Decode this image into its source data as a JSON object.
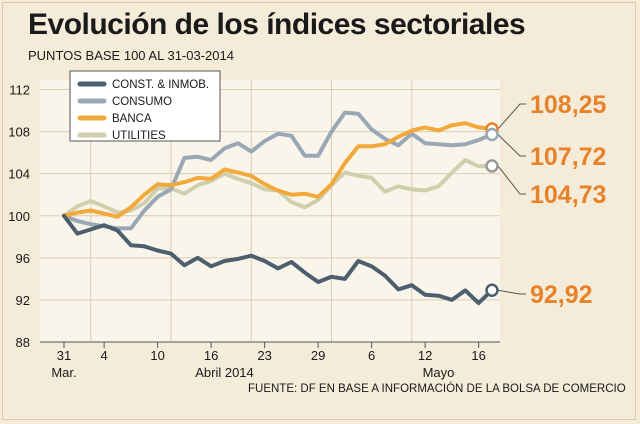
{
  "title": "Evolución de los índices sectoriales",
  "subtitle": "PUNTOS BASE 100 AL 31-03-2014",
  "source": "FUENTE: DF EN BASE A INFORMACIÓN DE LA BOLSA DE COMERCIO",
  "chart_data": {
    "type": "line",
    "ylim": [
      88,
      113
    ],
    "yticks": [
      88,
      92,
      96,
      100,
      104,
      108,
      112
    ],
    "xticks": [
      {
        "i": 0,
        "label": "31"
      },
      {
        "i": 3,
        "label": "4"
      },
      {
        "i": 7,
        "label": "10"
      },
      {
        "i": 11,
        "label": "16"
      },
      {
        "i": 15,
        "label": "23"
      },
      {
        "i": 19,
        "label": "29"
      },
      {
        "i": 23,
        "label": "6"
      },
      {
        "i": 27,
        "label": "12"
      },
      {
        "i": 31,
        "label": "16"
      }
    ],
    "month_labels": [
      {
        "i": 0,
        "label": "Mar."
      },
      {
        "i": 12,
        "label": "Abril 2014"
      },
      {
        "i": 28,
        "label": "Mayo"
      }
    ],
    "vlines": [
      2,
      8,
      14,
      20,
      26
    ],
    "series": [
      {
        "name": "CONST. & INMOB.",
        "color": "#4d5f6d",
        "values": [
          100.0,
          98.3,
          98.7,
          99.1,
          98.6,
          97.2,
          97.1,
          96.7,
          96.4,
          95.3,
          96.0,
          95.2,
          95.7,
          95.9,
          96.2,
          95.7,
          95.0,
          95.6,
          94.6,
          93.7,
          94.2,
          94.0,
          95.7,
          95.2,
          94.3,
          93.0,
          93.4,
          92.5,
          92.4,
          92.0,
          92.9,
          91.7,
          92.92
        ]
      },
      {
        "name": "CONSUMO",
        "color": "#9aa8b6",
        "values": [
          100.0,
          99.5,
          99.2,
          99.0,
          98.8,
          98.8,
          100.5,
          101.8,
          102.5,
          105.5,
          105.6,
          105.3,
          106.4,
          106.9,
          106.1,
          107.1,
          107.8,
          107.6,
          105.7,
          105.7,
          108.0,
          109.8,
          109.7,
          108.2,
          107.3,
          106.7,
          107.8,
          106.9,
          106.8,
          106.7,
          106.8,
          107.2,
          107.72
        ]
      },
      {
        "name": "BANCA",
        "color": "#f2a93b",
        "values": [
          100.0,
          100.3,
          100.5,
          100.2,
          99.9,
          100.8,
          102.0,
          103.0,
          102.9,
          103.2,
          103.6,
          103.5,
          104.4,
          104.1,
          103.8,
          103.0,
          102.4,
          102.0,
          102.1,
          101.8,
          103.0,
          105.0,
          106.6,
          106.6,
          106.8,
          107.5,
          108.1,
          108.4,
          108.1,
          108.6,
          108.8,
          108.4,
          108.25
        ]
      },
      {
        "name": "UTILITIES",
        "color": "#cfcfae",
        "values": [
          100.0,
          100.9,
          101.4,
          100.9,
          100.3,
          100.5,
          101.2,
          102.6,
          102.6,
          102.1,
          102.9,
          103.3,
          104.0,
          103.5,
          103.1,
          102.5,
          102.4,
          101.3,
          100.8,
          101.5,
          102.9,
          104.1,
          103.8,
          103.6,
          102.3,
          102.8,
          102.5,
          102.4,
          102.8,
          104.1,
          105.3,
          104.7,
          104.73
        ]
      }
    ],
    "end_labels": [
      {
        "text": "108,25",
        "value": 108.25,
        "series": 2
      },
      {
        "text": "107,72",
        "value": 107.72,
        "series": 1
      },
      {
        "text": "104,73",
        "value": 104.73,
        "series": 3
      },
      {
        "text": "92,92",
        "value": 92.92,
        "series": 0
      }
    ],
    "end_label_color": "#e8822a"
  }
}
